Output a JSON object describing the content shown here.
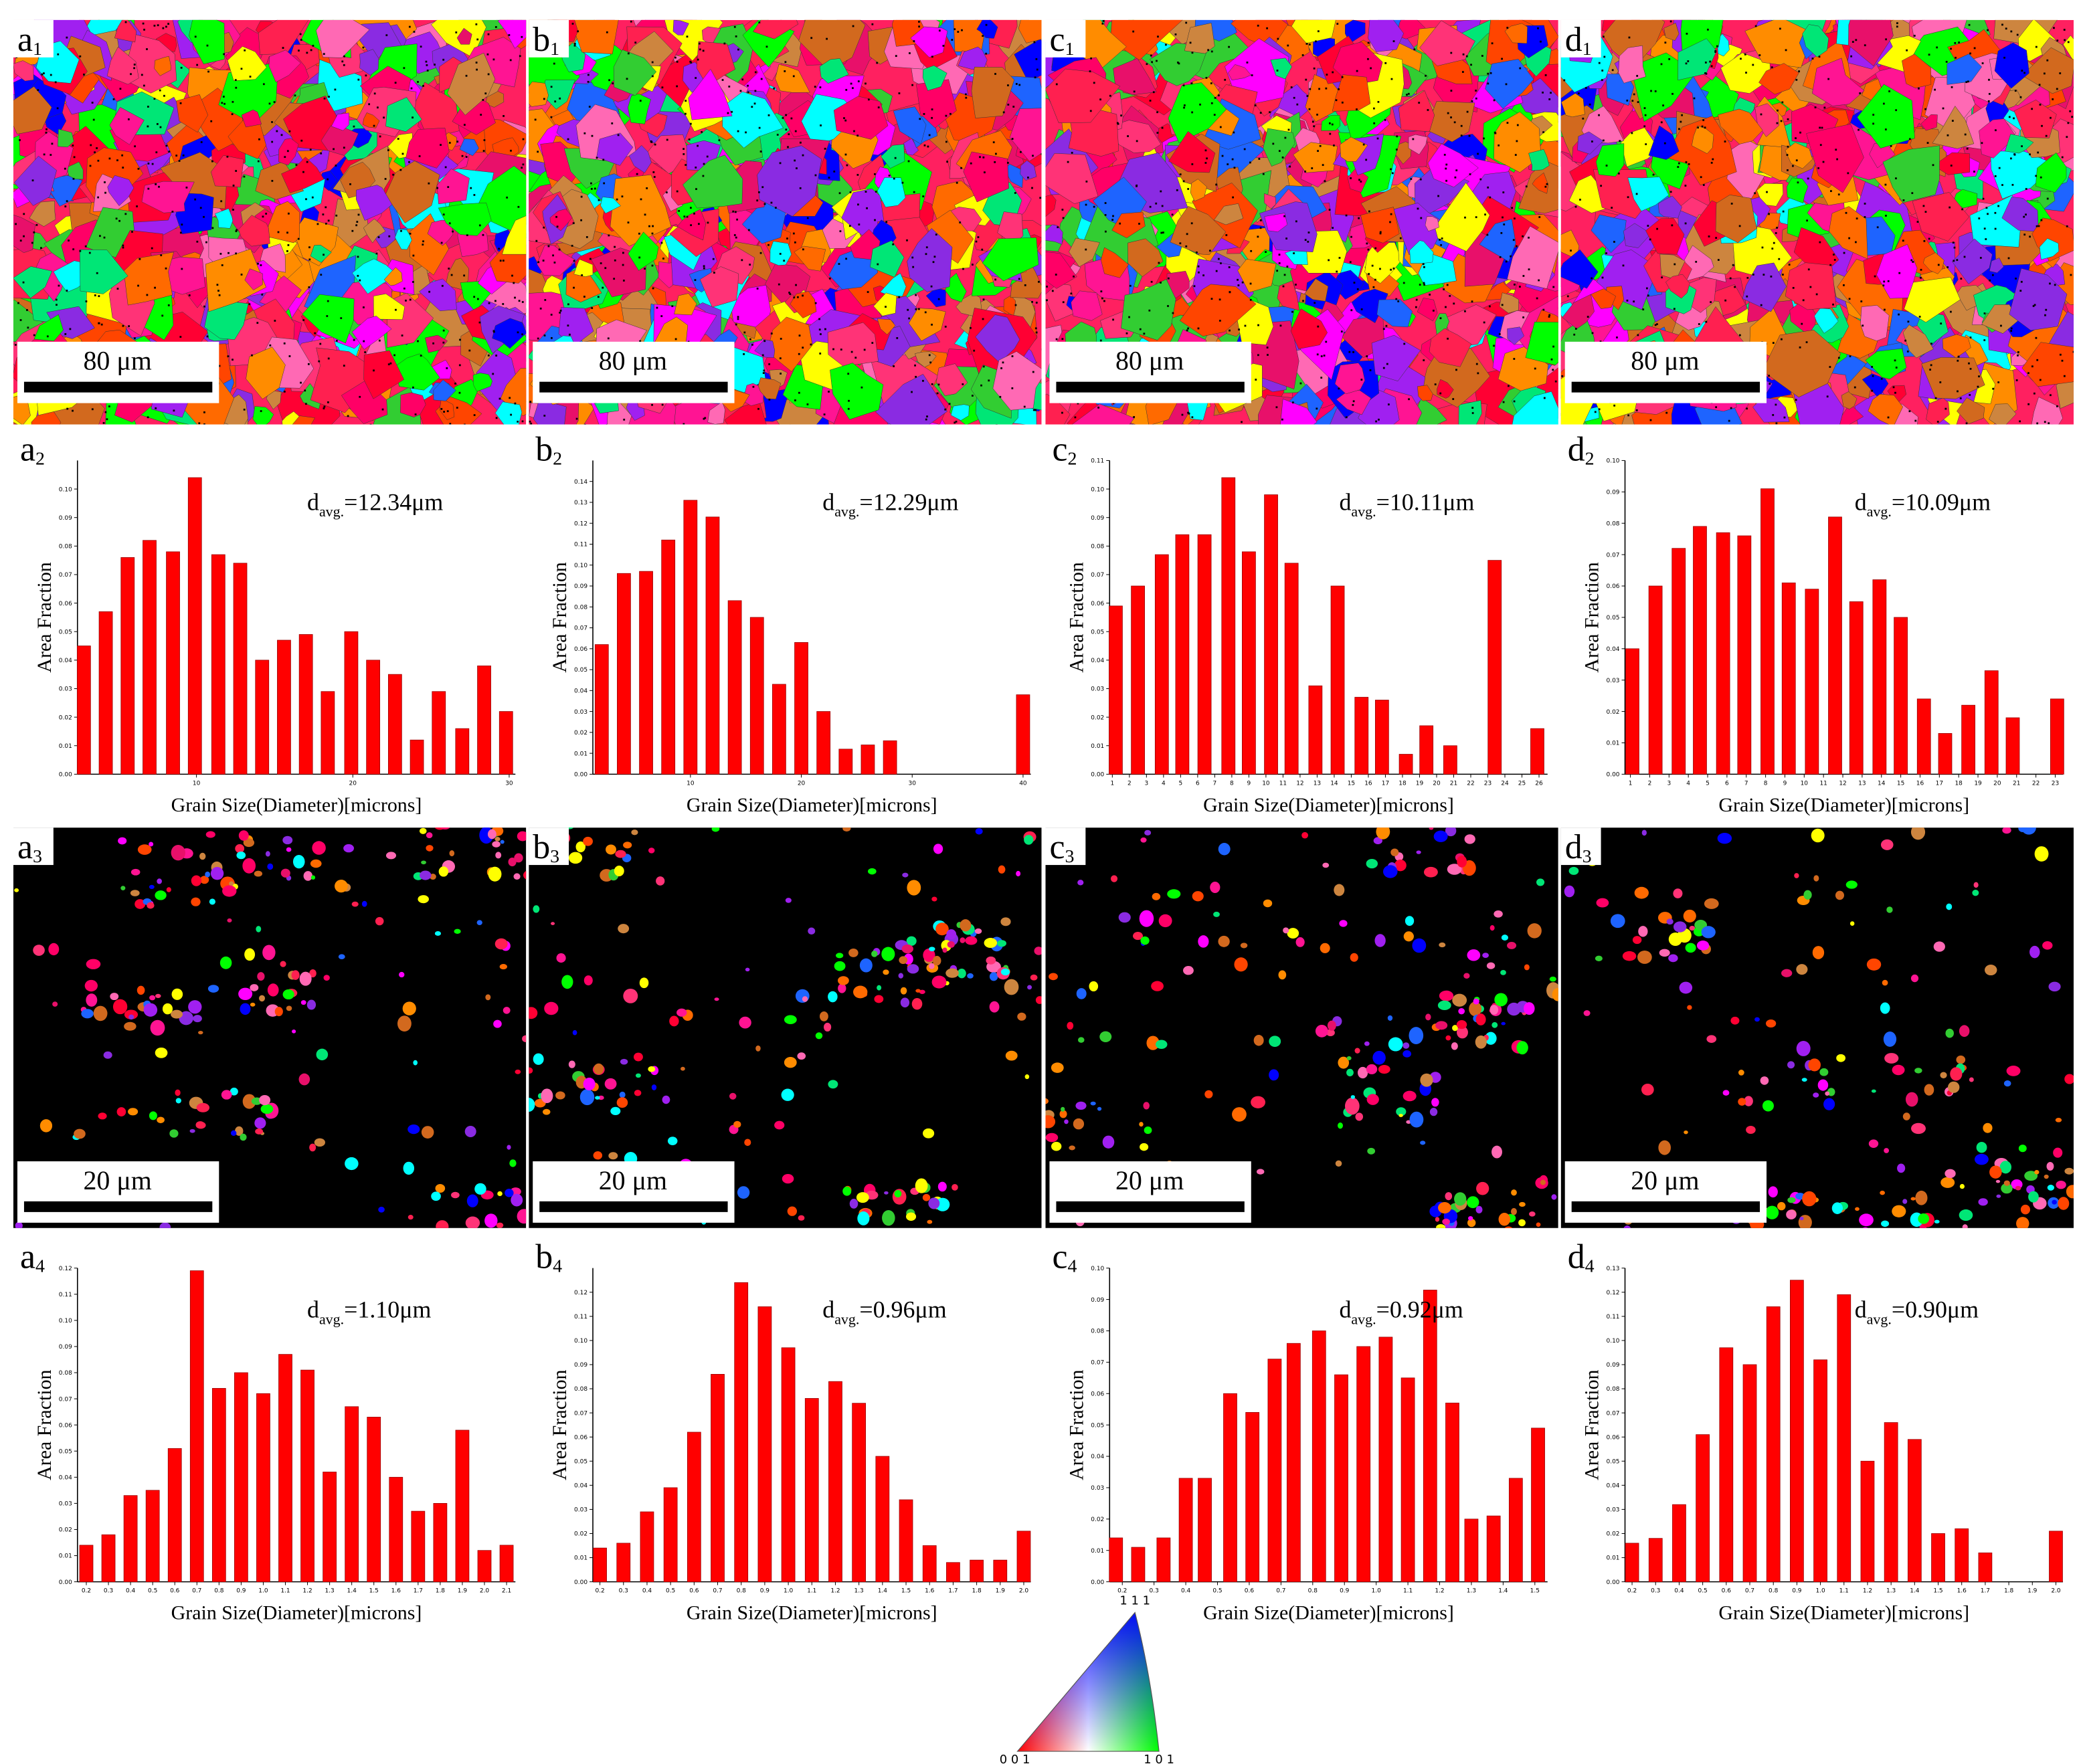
{
  "maps_top": [
    {
      "label": {
        "letter": "a",
        "index": "1"
      },
      "scale_bar": "80 μm"
    },
    {
      "label": {
        "letter": "b",
        "index": "1"
      },
      "scale_bar": "80 μm"
    },
    {
      "label": {
        "letter": "c",
        "index": "1"
      },
      "scale_bar": "80 μm"
    },
    {
      "label": {
        "letter": "d",
        "index": "1"
      },
      "scale_bar": "80 μm"
    }
  ],
  "maps_bottom": [
    {
      "label": {
        "letter": "a",
        "index": "3"
      },
      "scale_bar": "20 μm"
    },
    {
      "label": {
        "letter": "b",
        "index": "3"
      },
      "scale_bar": "20 μm"
    },
    {
      "label": {
        "letter": "c",
        "index": "3"
      },
      "scale_bar": "20 μm"
    },
    {
      "label": {
        "letter": "d",
        "index": "3"
      },
      "scale_bar": "20 μm"
    }
  ],
  "ipf": {
    "top": "1 1 1",
    "left": "0 0 1",
    "right": "1 0 1"
  },
  "chart_data": [
    {
      "type": "bar",
      "panel": {
        "letter": "a",
        "index": "2"
      },
      "annotation": {
        "base": "d",
        "sub": "avg.",
        "text": "=12.34μm"
      },
      "ylabel": "Area Fraction",
      "xlabel": "Grain Size(Diameter)[microns]",
      "color": "#ff0000",
      "x": [
        2.8,
        4.2,
        5.6,
        7.0,
        8.5,
        9.9,
        11.4,
        12.8,
        14.2,
        15.6,
        17.0,
        18.4,
        19.9,
        21.3,
        22.7,
        24.1,
        25.5,
        27.0,
        28.4,
        29.8
      ],
      "values": [
        0.045,
        0.057,
        0.076,
        0.082,
        0.078,
        0.104,
        0.077,
        0.074,
        0.04,
        0.047,
        0.049,
        0.029,
        0.05,
        0.04,
        0.035,
        0.012,
        0.029,
        0.016,
        0.038,
        0.022
      ],
      "xlim": [
        2.39,
        30.4
      ],
      "xticks": [
        10,
        20,
        30
      ],
      "ylim": [
        0,
        0.11
      ],
      "yticks": [
        {
          "value": 0,
          "label": "0.00"
        },
        {
          "value": 0.01,
          "label": "0.01"
        },
        {
          "value": 0.02,
          "label": "0.02"
        },
        {
          "value": 0.03,
          "label": "0.03"
        },
        {
          "value": 0.04,
          "label": "0.04"
        },
        {
          "value": 0.05,
          "label": "0.05"
        },
        {
          "value": 0.06,
          "label": "0.06"
        },
        {
          "value": 0.07,
          "label": "0.07"
        },
        {
          "value": 0.08,
          "label": "0.08"
        },
        {
          "value": 0.09,
          "label": "0.09"
        },
        {
          "value": 0.1,
          "label": "0.10"
        }
      ]
    },
    {
      "type": "bar",
      "panel": {
        "letter": "b",
        "index": "2"
      },
      "annotation": {
        "base": "d",
        "sub": "avg.",
        "text": "=12.29μm"
      },
      "ylabel": "Area Fraction",
      "xlabel": "Grain Size(Diameter)[microns]",
      "color": "#ff0000",
      "x": [
        2,
        4,
        6,
        8,
        10,
        12,
        14,
        16,
        18,
        20,
        22,
        24,
        26,
        28,
        40
      ],
      "values": [
        0.062,
        0.096,
        0.097,
        0.112,
        0.131,
        0.123,
        0.083,
        0.075,
        0.043,
        0.063,
        0.03,
        0.012,
        0.014,
        0.016,
        0.038
      ],
      "xlim": [
        1.2,
        40.7
      ],
      "xticks": [
        10,
        20,
        30,
        40
      ],
      "ylim": [
        0,
        0.15
      ],
      "yticks": [
        {
          "value": 0,
          "label": "0.00"
        },
        {
          "value": 0.01,
          "label": "0.01"
        },
        {
          "value": 0.02,
          "label": "0.02"
        },
        {
          "value": 0.03,
          "label": "0.03"
        },
        {
          "value": 0.04,
          "label": "0.04"
        },
        {
          "value": 0.05,
          "label": "0.05"
        },
        {
          "value": 0.06,
          "label": "0.06"
        },
        {
          "value": 0.07,
          "label": "0.07"
        },
        {
          "value": 0.08,
          "label": "0.08"
        },
        {
          "value": 0.09,
          "label": "0.09"
        },
        {
          "value": 0.1,
          "label": "0.10"
        },
        {
          "value": 0.11,
          "label": "0.11"
        },
        {
          "value": 0.12,
          "label": "0.12"
        },
        {
          "value": 0.13,
          "label": "0.13"
        },
        {
          "value": 0.14,
          "label": "0.14"
        }
      ]
    },
    {
      "type": "bar",
      "panel": {
        "letter": "c",
        "index": "2"
      },
      "annotation": {
        "base": "d",
        "sub": "avg.",
        "text": "=10.11μm"
      },
      "ylabel": "Area Fraction",
      "xlabel": "Grain Size(Diameter)[microns]",
      "color": "#ff0000",
      "x": [
        1.2,
        2.5,
        3.9,
        5.1,
        6.4,
        7.8,
        9.0,
        10.3,
        11.5,
        12.9,
        14.2,
        15.6,
        16.8,
        18.2,
        19.4,
        20.8,
        23.4,
        25.9
      ],
      "values": [
        0.059,
        0.066,
        0.077,
        0.084,
        0.084,
        0.104,
        0.078,
        0.098,
        0.074,
        0.031,
        0.066,
        0.027,
        0.026,
        0.007,
        0.017,
        0.01,
        0.075,
        0.016
      ],
      "xlim": [
        0.84,
        26.5
      ],
      "xticks": [
        1,
        2,
        3,
        4,
        5,
        6,
        7,
        8,
        9,
        10,
        11,
        12,
        13,
        14,
        15,
        16,
        17,
        18,
        19,
        20,
        21,
        22,
        23,
        24,
        25,
        26
      ],
      "ylim": [
        0,
        0.11
      ],
      "yticks": [
        {
          "value": 0,
          "label": "0.00"
        },
        {
          "value": 0.01,
          "label": "0.01"
        },
        {
          "value": 0.02,
          "label": "0.02"
        },
        {
          "value": 0.03,
          "label": "0.03"
        },
        {
          "value": 0.04,
          "label": "0.04"
        },
        {
          "value": 0.05,
          "label": "0.05"
        },
        {
          "value": 0.06,
          "label": "0.06"
        },
        {
          "value": 0.07,
          "label": "0.07"
        },
        {
          "value": 0.08,
          "label": "0.08"
        },
        {
          "value": 0.09,
          "label": "0.09"
        },
        {
          "value": 0.1,
          "label": "0.10"
        },
        {
          "value": 0.11,
          "label": "0.11"
        }
      ]
    },
    {
      "type": "bar",
      "panel": {
        "letter": "d",
        "index": "2"
      },
      "annotation": {
        "base": "d",
        "sub": "avg.",
        "text": "=10.09μm"
      },
      "ylabel": "Area Fraction",
      "xlabel": "Grain Size(Diameter)[microns]",
      "color": "#ff0000",
      "x": [
        1.1,
        2.3,
        3.5,
        4.6,
        5.8,
        6.9,
        8.1,
        9.2,
        10.4,
        11.6,
        12.7,
        13.9,
        15.0,
        16.2,
        17.3,
        18.5,
        19.7,
        20.8,
        23.1
      ],
      "values": [
        0.04,
        0.06,
        0.072,
        0.079,
        0.077,
        0.076,
        0.091,
        0.061,
        0.059,
        0.082,
        0.055,
        0.062,
        0.05,
        0.024,
        0.013,
        0.022,
        0.033,
        0.018,
        0.024
      ],
      "xlim": [
        0.72,
        23.4
      ],
      "xticks": [
        1,
        2,
        3,
        4,
        5,
        6,
        7,
        8,
        9,
        10,
        11,
        12,
        13,
        14,
        15,
        16,
        17,
        18,
        19,
        20,
        21,
        22,
        23
      ],
      "ylim": [
        0,
        0.1
      ],
      "yticks": [
        {
          "value": 0,
          "label": "0.00"
        },
        {
          "value": 0.01,
          "label": "0.01"
        },
        {
          "value": 0.02,
          "label": "0.02"
        },
        {
          "value": 0.03,
          "label": "0.03"
        },
        {
          "value": 0.04,
          "label": "0.04"
        },
        {
          "value": 0.05,
          "label": "0.05"
        },
        {
          "value": 0.06,
          "label": "0.06"
        },
        {
          "value": 0.07,
          "label": "0.07"
        },
        {
          "value": 0.08,
          "label": "0.08"
        },
        {
          "value": 0.09,
          "label": "0.09"
        },
        {
          "value": 0.1,
          "label": "0.10"
        }
      ]
    },
    {
      "type": "bar",
      "panel": {
        "letter": "a",
        "index": "4"
      },
      "annotation": {
        "base": "d",
        "sub": "avg.",
        "text": "=1.10μm"
      },
      "ylabel": "Area Fraction",
      "xlabel": "Grain Size(Diameter)[microns]",
      "color": "#ff0000",
      "x": [
        0.2,
        0.3,
        0.4,
        0.5,
        0.6,
        0.7,
        0.8,
        0.9,
        1,
        1.1,
        1.2,
        1.3,
        1.4,
        1.5,
        1.6,
        1.7,
        1.8,
        1.9,
        2,
        2.1
      ],
      "values": [
        0.014,
        0.018,
        0.033,
        0.035,
        0.051,
        0.119,
        0.074,
        0.08,
        0.072,
        0.087,
        0.081,
        0.042,
        0.067,
        0.063,
        0.04,
        0.027,
        0.03,
        0.058,
        0.012,
        0.014
      ],
      "xlim": [
        0.16,
        2.14
      ],
      "xticks": [
        0.2,
        0.3,
        0.4,
        0.5,
        0.6,
        0.7,
        0.8,
        0.9,
        {
          "value": 1,
          "label": "1.0"
        },
        1.1,
        1.2,
        1.3,
        1.4,
        1.5,
        1.6,
        1.7,
        1.8,
        1.9,
        {
          "value": 2,
          "label": "2.0"
        },
        2.1
      ],
      "ylim": [
        0,
        0.12
      ],
      "yticks": [
        {
          "value": 0,
          "label": "0.00"
        },
        {
          "value": 0.01,
          "label": "0.01"
        },
        {
          "value": 0.02,
          "label": "0.02"
        },
        {
          "value": 0.03,
          "label": "0.03"
        },
        {
          "value": 0.04,
          "label": "0.04"
        },
        {
          "value": 0.05,
          "label": "0.05"
        },
        {
          "value": 0.06,
          "label": "0.06"
        },
        {
          "value": 0.07,
          "label": "0.07"
        },
        {
          "value": 0.08,
          "label": "0.08"
        },
        {
          "value": 0.09,
          "label": "0.09"
        },
        {
          "value": 0.1,
          "label": "0.10"
        },
        {
          "value": 0.11,
          "label": "0.11"
        },
        {
          "value": 0.12,
          "label": "0.12"
        }
      ]
    },
    {
      "type": "bar",
      "panel": {
        "letter": "b",
        "index": "4"
      },
      "annotation": {
        "base": "d",
        "sub": "avg.",
        "text": "=0.96μm"
      },
      "ylabel": "Area Fraction",
      "xlabel": "Grain Size(Diameter)[microns]",
      "color": "#ff0000",
      "x": [
        0.2,
        0.3,
        0.4,
        0.5,
        0.6,
        0.7,
        0.8,
        0.9,
        1,
        1.1,
        1.2,
        1.3,
        1.4,
        1.5,
        1.6,
        1.7,
        1.8,
        1.9,
        2
      ],
      "values": [
        0.014,
        0.016,
        0.029,
        0.039,
        0.062,
        0.086,
        0.124,
        0.114,
        0.097,
        0.076,
        0.083,
        0.074,
        0.052,
        0.034,
        0.015,
        0.008,
        0.009,
        0.009,
        0.021
      ],
      "xlim": [
        0.17,
        2.03
      ],
      "xticks": [
        0.2,
        0.3,
        0.4,
        0.5,
        0.6,
        0.7,
        0.8,
        0.9,
        {
          "value": 1,
          "label": "1.0"
        },
        1.1,
        1.2,
        1.3,
        1.4,
        1.5,
        1.6,
        1.7,
        1.8,
        1.9,
        {
          "value": 2,
          "label": "2.0"
        }
      ],
      "ylim": [
        0,
        0.13
      ],
      "yticks": [
        {
          "value": 0,
          "label": "0.00"
        },
        {
          "value": 0.01,
          "label": "0.01"
        },
        {
          "value": 0.02,
          "label": "0.02"
        },
        {
          "value": 0.03,
          "label": "0.03"
        },
        {
          "value": 0.04,
          "label": "0.04"
        },
        {
          "value": 0.05,
          "label": "0.05"
        },
        {
          "value": 0.06,
          "label": "0.06"
        },
        {
          "value": 0.07,
          "label": "0.07"
        },
        {
          "value": 0.08,
          "label": "0.08"
        },
        {
          "value": 0.09,
          "label": "0.09"
        },
        {
          "value": 0.1,
          "label": "0.10"
        },
        {
          "value": 0.11,
          "label": "0.11"
        },
        {
          "value": 0.12,
          "label": "0.12"
        }
      ]
    },
    {
      "type": "bar",
      "panel": {
        "letter": "c",
        "index": "4"
      },
      "annotation": {
        "base": "d",
        "sub": "avg.",
        "text": "=0.92μm"
      },
      "ylabel": "Area Fraction",
      "xlabel": "Grain Size(Diameter)[microns]",
      "color": "#ff0000",
      "x": [
        0.18,
        0.25,
        0.33,
        0.4,
        0.46,
        0.54,
        0.61,
        0.68,
        0.74,
        0.82,
        0.89,
        0.96,
        1.03,
        1.1,
        1.17,
        1.24,
        1.3,
        1.37,
        1.44,
        1.51
      ],
      "values": [
        0.014,
        0.011,
        0.014,
        0.033,
        0.033,
        0.06,
        0.054,
        0.071,
        0.076,
        0.08,
        0.066,
        0.075,
        0.078,
        0.065,
        0.093,
        0.057,
        0.02,
        0.021,
        0.033,
        0.049
      ],
      "xlim": [
        0.16,
        1.54
      ],
      "xticks": [
        0.2,
        0.3,
        0.4,
        0.5,
        0.6,
        0.7,
        0.8,
        0.9,
        {
          "value": 1,
          "label": "1.0"
        },
        1.1,
        1.2,
        1.3,
        1.4,
        1.5
      ],
      "ylim": [
        0,
        0.1
      ],
      "yticks": [
        {
          "value": 0,
          "label": "0.00"
        },
        {
          "value": 0.01,
          "label": "0.01"
        },
        {
          "value": 0.02,
          "label": "0.02"
        },
        {
          "value": 0.03,
          "label": "0.03"
        },
        {
          "value": 0.04,
          "label": "0.04"
        },
        {
          "value": 0.05,
          "label": "0.05"
        },
        {
          "value": 0.06,
          "label": "0.06"
        },
        {
          "value": 0.07,
          "label": "0.07"
        },
        {
          "value": 0.08,
          "label": "0.08"
        },
        {
          "value": 0.09,
          "label": "0.09"
        },
        {
          "value": 0.1,
          "label": "0.10"
        }
      ]
    },
    {
      "type": "bar",
      "panel": {
        "letter": "d",
        "index": "4"
      },
      "annotation": {
        "base": "d",
        "sub": "avg.",
        "text": "=0.90μm"
      },
      "ylabel": "Area Fraction",
      "xlabel": "Grain Size(Diameter)[microns]",
      "color": "#ff0000",
      "x": [
        0.2,
        0.3,
        0.4,
        0.5,
        0.6,
        0.7,
        0.8,
        0.9,
        1,
        1.1,
        1.2,
        1.3,
        1.4,
        1.5,
        1.6,
        1.7,
        2
      ],
      "values": [
        0.016,
        0.018,
        0.032,
        0.061,
        0.097,
        0.09,
        0.114,
        0.125,
        0.092,
        0.119,
        0.05,
        0.066,
        0.059,
        0.02,
        0.022,
        0.012,
        0.021
      ],
      "xlim": [
        0.17,
        2.03
      ],
      "xticks": [
        0.2,
        0.3,
        0.4,
        0.5,
        0.6,
        0.7,
        0.8,
        0.9,
        {
          "value": 1,
          "label": "1.0"
        },
        1.1,
        1.2,
        1.3,
        1.4,
        1.5,
        1.6,
        1.7,
        1.8,
        1.9,
        {
          "value": 2,
          "label": "2.0"
        }
      ],
      "ylim": [
        0,
        0.13
      ],
      "yticks": [
        {
          "value": 0,
          "label": "0.00"
        },
        {
          "value": 0.01,
          "label": "0.01"
        },
        {
          "value": 0.02,
          "label": "0.02"
        },
        {
          "value": 0.03,
          "label": "0.03"
        },
        {
          "value": 0.04,
          "label": "0.04"
        },
        {
          "value": 0.05,
          "label": "0.05"
        },
        {
          "value": 0.06,
          "label": "0.06"
        },
        {
          "value": 0.07,
          "label": "0.07"
        },
        {
          "value": 0.08,
          "label": "0.08"
        },
        {
          "value": 0.09,
          "label": "0.09"
        },
        {
          "value": 0.1,
          "label": "0.10"
        },
        {
          "value": 0.11,
          "label": "0.11"
        },
        {
          "value": 0.12,
          "label": "0.12"
        },
        {
          "value": 0.13,
          "label": "0.13"
        }
      ]
    }
  ]
}
